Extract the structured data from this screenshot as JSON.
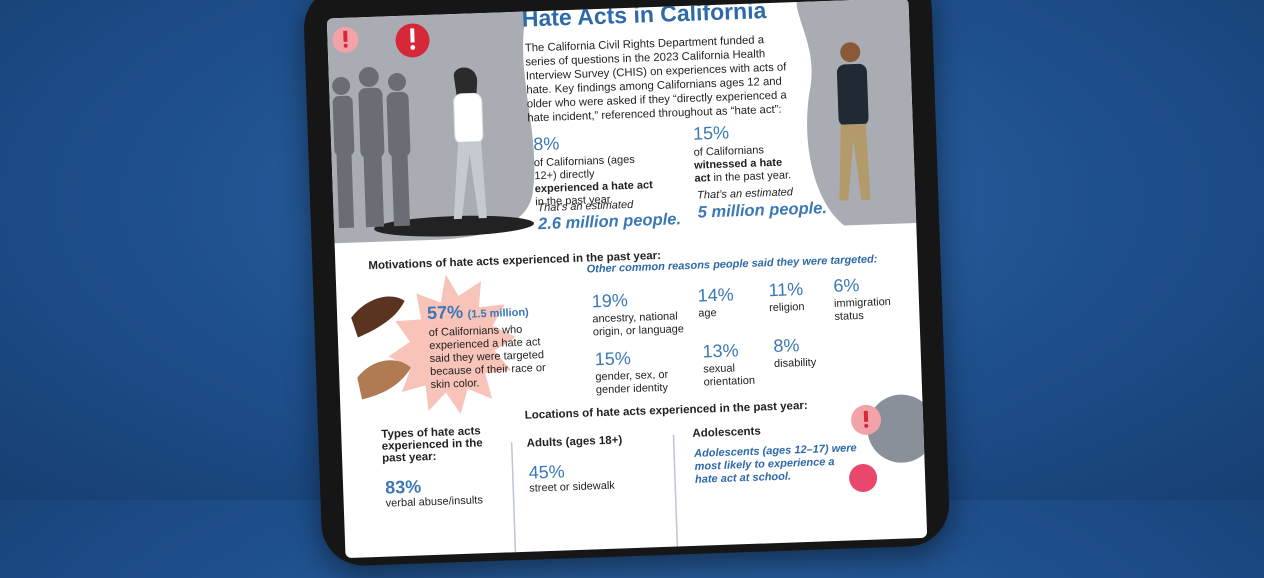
{
  "header": {
    "title": "Hate Acts in California",
    "intro": "The California Civil Rights Department funded a series of questions in the 2023 California Health Interview Survey (CHIS) on experiences with acts of hate. Key findings among Californians ages 12 and older who were asked if they “directly experienced a hate incident,” referenced throughout as “hate act”:"
  },
  "key_stats": [
    {
      "value": "8%",
      "text_before": "of Californians (ages 12+) directly ",
      "text_bold": "experienced a hate act",
      "text_after": " in the past year.",
      "estimate_label": "That’s an estimated",
      "estimate": "2.6 million people."
    },
    {
      "value": "15%",
      "text_before": "of Californians ",
      "text_bold": "witnessed a hate act",
      "text_after": " in the past year.",
      "estimate_label": "That’s an estimated",
      "estimate": "5 million people."
    }
  ],
  "motivations": {
    "heading": "Motivations of hate acts experienced in the past year:",
    "main": {
      "value": "57%",
      "note": "(1.5 million)",
      "text": "of Californians who experienced a hate act said they were targeted because of their race or skin color."
    },
    "other_heading": "Other common reasons people said they were targeted:",
    "reasons": [
      {
        "value": "19%",
        "label": "ancestry, national origin, or language"
      },
      {
        "value": "14%",
        "label": "age"
      },
      {
        "value": "11%",
        "label": "religion"
      },
      {
        "value": "6%",
        "label": "immigration status"
      },
      {
        "value": "15%",
        "label": "gender, sex, or gender identity"
      },
      {
        "value": "13%",
        "label": "sexual orientation"
      },
      {
        "value": "8%",
        "label": "disability"
      }
    ]
  },
  "types": {
    "heading": "Types of hate acts experienced in the past year:",
    "items": [
      {
        "value": "83%",
        "label": "verbal abuse/insults"
      }
    ]
  },
  "locations": {
    "heading": "Locations of hate acts experienced in the past year:",
    "adults": {
      "heading": "Adults (ages 18+)",
      "items": [
        {
          "value": "45%",
          "label": "street or sidewalk"
        }
      ]
    },
    "adolescents": {
      "heading": "Adolescents",
      "text": "Adolescents (ages 12–17) were most likely to experience a hate act at school."
    }
  }
}
